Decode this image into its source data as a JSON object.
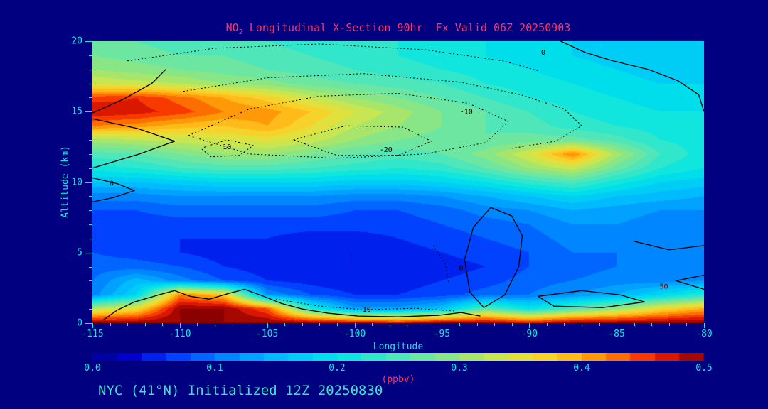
{
  "title": {
    "pre": "NO",
    "sub": "2",
    "post": " Longitudinal X-Section 90hr  Fx Valid 06Z 20250903"
  },
  "subtitle": "NYC (41°N) Initialized 12Z 20250830",
  "colors": {
    "background": "#000080",
    "title_text": "#ff3366",
    "axis_text": "#17e4e4",
    "subtitle_text": "#40e0d0",
    "contour": "#000000",
    "contour_red_label": "#7d0000"
  },
  "axes": {
    "x": {
      "label": "Longitude",
      "min": -115,
      "max": -80,
      "minor_step": 1,
      "major_ticks": [
        -115,
        -110,
        -105,
        -100,
        -95,
        -90,
        -85,
        -80
      ]
    },
    "y": {
      "label": "Altitude (km)",
      "min": 0,
      "max": 20,
      "minor_step": 1,
      "major_ticks": [
        0,
        5,
        10,
        15,
        20
      ]
    }
  },
  "colorbar": {
    "label": "(ppbv)",
    "min": 0.0,
    "max": 0.5,
    "ticks": [
      "0.0",
      "0.1",
      "0.2",
      "0.3",
      "0.4",
      "0.5"
    ]
  },
  "chart_data": {
    "type": "heatmap",
    "title": "NO2 Longitudinal X-Section 90hr  Fx Valid 06Z 20250903",
    "xlabel": "Longitude",
    "ylabel": "Altitude (km)",
    "units": "ppbv",
    "x_range": [
      -115,
      -80
    ],
    "y_range": [
      0,
      20
    ],
    "x_step_deg": 2.5,
    "y_step_km": 1,
    "level_step": 0.02,
    "grid_note": "rows top-to-bottom = altitude 20km down to 0km; cols = longitude -115 to -80 step 2.5",
    "grid": [
      [
        0.27,
        0.26,
        0.25,
        0.25,
        0.24,
        0.23,
        0.23,
        0.22,
        0.21,
        0.2,
        0.19,
        0.18,
        0.17,
        0.16,
        0.16
      ],
      [
        0.28,
        0.27,
        0.26,
        0.26,
        0.25,
        0.24,
        0.23,
        0.22,
        0.21,
        0.2,
        0.19,
        0.18,
        0.17,
        0.17,
        0.16
      ],
      [
        0.3,
        0.29,
        0.28,
        0.27,
        0.26,
        0.25,
        0.24,
        0.23,
        0.22,
        0.21,
        0.2,
        0.19,
        0.18,
        0.17,
        0.17
      ],
      [
        0.34,
        0.33,
        0.32,
        0.3,
        0.29,
        0.27,
        0.26,
        0.25,
        0.24,
        0.22,
        0.21,
        0.2,
        0.19,
        0.18,
        0.18
      ],
      [
        0.45,
        0.46,
        0.43,
        0.4,
        0.37,
        0.33,
        0.3,
        0.28,
        0.26,
        0.24,
        0.22,
        0.21,
        0.2,
        0.19,
        0.19
      ],
      [
        0.48,
        0.47,
        0.45,
        0.42,
        0.41,
        0.38,
        0.34,
        0.31,
        0.28,
        0.26,
        0.24,
        0.22,
        0.21,
        0.2,
        0.2
      ],
      [
        0.42,
        0.41,
        0.39,
        0.38,
        0.4,
        0.36,
        0.32,
        0.3,
        0.28,
        0.26,
        0.25,
        0.23,
        0.22,
        0.21,
        0.2
      ],
      [
        0.31,
        0.32,
        0.33,
        0.34,
        0.35,
        0.33,
        0.3,
        0.28,
        0.27,
        0.26,
        0.27,
        0.27,
        0.25,
        0.22,
        0.21
      ],
      [
        0.25,
        0.26,
        0.28,
        0.3,
        0.3,
        0.28,
        0.26,
        0.25,
        0.26,
        0.29,
        0.34,
        0.42,
        0.31,
        0.24,
        0.21
      ],
      [
        0.21,
        0.22,
        0.24,
        0.25,
        0.25,
        0.24,
        0.23,
        0.22,
        0.23,
        0.26,
        0.3,
        0.33,
        0.27,
        0.22,
        0.2
      ],
      [
        0.16,
        0.16,
        0.17,
        0.18,
        0.18,
        0.18,
        0.17,
        0.17,
        0.18,
        0.2,
        0.23,
        0.25,
        0.21,
        0.18,
        0.17
      ],
      [
        0.11,
        0.11,
        0.12,
        0.12,
        0.12,
        0.12,
        0.11,
        0.11,
        0.12,
        0.14,
        0.16,
        0.18,
        0.16,
        0.15,
        0.14
      ],
      [
        0.08,
        0.08,
        0.09,
        0.09,
        0.09,
        0.09,
        0.08,
        0.08,
        0.09,
        0.11,
        0.12,
        0.14,
        0.13,
        0.12,
        0.12
      ],
      [
        0.07,
        0.07,
        0.07,
        0.07,
        0.07,
        0.07,
        0.07,
        0.07,
        0.08,
        0.09,
        0.1,
        0.12,
        0.12,
        0.11,
        0.11
      ],
      [
        0.07,
        0.06,
        0.06,
        0.06,
        0.06,
        0.05,
        0.05,
        0.06,
        0.07,
        0.08,
        0.09,
        0.11,
        0.11,
        0.1,
        0.1
      ],
      [
        0.08,
        0.07,
        0.06,
        0.05,
        0.05,
        0.04,
        0.04,
        0.05,
        0.06,
        0.07,
        0.08,
        0.1,
        0.1,
        0.1,
        0.1
      ],
      [
        0.09,
        0.09,
        0.08,
        0.06,
        0.05,
        0.04,
        0.04,
        0.04,
        0.05,
        0.06,
        0.08,
        0.09,
        0.1,
        0.1,
        0.1
      ],
      [
        0.1,
        0.15,
        0.11,
        0.08,
        0.06,
        0.05,
        0.04,
        0.05,
        0.06,
        0.07,
        0.09,
        0.1,
        0.11,
        0.11,
        0.12
      ],
      [
        0.11,
        0.18,
        0.42,
        0.38,
        0.12,
        0.08,
        0.06,
        0.06,
        0.07,
        0.09,
        0.1,
        0.12,
        0.14,
        0.18,
        0.22
      ],
      [
        0.32,
        0.36,
        0.5,
        0.5,
        0.44,
        0.22,
        0.13,
        0.13,
        0.16,
        0.26,
        0.2,
        0.25,
        0.3,
        0.36,
        0.4
      ],
      [
        0.5,
        0.5,
        0.5,
        0.5,
        0.5,
        0.5,
        0.49,
        0.47,
        0.5,
        0.5,
        0.47,
        0.5,
        0.5,
        0.5,
        0.5
      ]
    ],
    "colormap_stops": [
      {
        "v": 0.0,
        "c": "#000090"
      },
      {
        "v": 0.03,
        "c": "#0000CC"
      },
      {
        "v": 0.06,
        "c": "#0030FF"
      },
      {
        "v": 0.1,
        "c": "#0078FF"
      },
      {
        "v": 0.15,
        "c": "#00BCFF"
      },
      {
        "v": 0.2,
        "c": "#00E6E6"
      },
      {
        "v": 0.26,
        "c": "#5FE6B0"
      },
      {
        "v": 0.3,
        "c": "#96E678"
      },
      {
        "v": 0.34,
        "c": "#D9E645"
      },
      {
        "v": 0.38,
        "c": "#FFCC22"
      },
      {
        "v": 0.42,
        "c": "#FF8800"
      },
      {
        "v": 0.46,
        "c": "#F52000"
      },
      {
        "v": 0.5,
        "c": "#8B0000"
      }
    ],
    "overlay_contours": [
      {
        "style": "solid",
        "points": [
          [
            -88.2,
            20
          ],
          [
            -86.8,
            19.2
          ],
          [
            -85.2,
            18.6
          ],
          [
            -83.2,
            18.0
          ],
          [
            -81.5,
            17.2
          ],
          [
            -80.3,
            16.2
          ],
          [
            -80,
            15.0
          ]
        ]
      },
      {
        "style": "solid",
        "points": [
          [
            -115,
            14.5
          ],
          [
            -112.4,
            13.8
          ],
          [
            -110.3,
            12.9
          ],
          [
            -112.3,
            12.0
          ],
          [
            -115,
            11.0
          ]
        ]
      },
      {
        "style": "solid",
        "points": [
          [
            -115,
            10.3
          ],
          [
            -113.6,
            9.9
          ],
          [
            -112.6,
            9.4
          ],
          [
            -113.8,
            8.9
          ],
          [
            -115,
            8.6
          ]
        ]
      },
      {
        "style": "solid",
        "points": [
          [
            -92.2,
            8.2
          ],
          [
            -91.0,
            7.6
          ],
          [
            -90.4,
            6.2
          ],
          [
            -90.6,
            4.0
          ],
          [
            -91.4,
            2.0
          ],
          [
            -92.6,
            1.1
          ],
          [
            -93.4,
            2.2
          ],
          [
            -93.7,
            4.5
          ],
          [
            -93.2,
            6.8
          ],
          [
            -92.2,
            8.2
          ]
        ]
      },
      {
        "style": "solid",
        "points": [
          [
            -89.5,
            1.9
          ],
          [
            -87.0,
            2.3
          ],
          [
            -84.8,
            2.0
          ],
          [
            -83.4,
            1.5
          ],
          [
            -85.8,
            1.1
          ],
          [
            -88.6,
            1.2
          ],
          [
            -89.5,
            1.9
          ]
        ]
      },
      {
        "style": "solid",
        "points": [
          [
            -84.0,
            5.8
          ],
          [
            -82.0,
            5.2
          ],
          [
            -80,
            5.5
          ]
        ]
      },
      {
        "style": "solid",
        "points": [
          [
            -80,
            3.4
          ],
          [
            -81.6,
            3.0
          ],
          [
            -80,
            2.4
          ]
        ]
      },
      {
        "style": "solid",
        "points": [
          [
            -115,
            14.9
          ],
          [
            -113.2,
            15.9
          ],
          [
            -111.6,
            17.0
          ],
          [
            -110.8,
            18.0
          ]
        ]
      },
      {
        "style": "solid",
        "points": [
          [
            -114.4,
            0.2
          ],
          [
            -113.6,
            0.9
          ],
          [
            -112.6,
            1.5
          ],
          [
            -111.2,
            2.0
          ],
          [
            -110.3,
            2.3
          ],
          [
            -109.4,
            1.9
          ],
          [
            -108.3,
            1.7
          ],
          [
            -107.2,
            2.1
          ],
          [
            -106.3,
            2.4
          ],
          [
            -105.2,
            1.9
          ],
          [
            -104.2,
            1.4
          ],
          [
            -103.0,
            1.0
          ],
          [
            -101.5,
            0.7
          ],
          [
            -99.8,
            0.5
          ],
          [
            -97.5,
            0.45
          ],
          [
            -95.2,
            0.55
          ],
          [
            -93.9,
            0.75
          ],
          [
            -92.8,
            0.5
          ]
        ]
      },
      {
        "style": "dotted",
        "points": [
          [
            -109.5,
            13.3
          ],
          [
            -106,
            15.2
          ],
          [
            -102,
            16.1
          ],
          [
            -97.5,
            16.3
          ],
          [
            -93.5,
            15.6
          ],
          [
            -91.2,
            14.3
          ],
          [
            -92.5,
            12.8
          ],
          [
            -96,
            12.0
          ],
          [
            -101,
            11.7
          ],
          [
            -106,
            12.0
          ],
          [
            -109.5,
            13.3
          ]
        ]
      },
      {
        "style": "dotted",
        "points": [
          [
            -103.5,
            13.0
          ],
          [
            -100.5,
            14.0
          ],
          [
            -97.2,
            13.9
          ],
          [
            -95.6,
            12.9
          ],
          [
            -97.5,
            11.9
          ],
          [
            -101,
            11.9
          ],
          [
            -103.5,
            13.0
          ]
        ]
      },
      {
        "style": "dotted",
        "points": [
          [
            -108.8,
            12.4
          ],
          [
            -107.3,
            13.0
          ],
          [
            -105.8,
            12.6
          ],
          [
            -106.6,
            11.9
          ],
          [
            -108.2,
            11.8
          ],
          [
            -108.8,
            12.4
          ]
        ]
      },
      {
        "style": "dotted",
        "points": [
          [
            -113,
            18.6
          ],
          [
            -108,
            19.5
          ],
          [
            -102,
            19.8
          ],
          [
            -96,
            19.4
          ],
          [
            -91.5,
            18.6
          ],
          [
            -89.5,
            17.9
          ]
        ]
      },
      {
        "style": "dotted",
        "points": [
          [
            -110,
            16.4
          ],
          [
            -105,
            17.4
          ],
          [
            -99.5,
            17.7
          ],
          [
            -94,
            17.1
          ],
          [
            -90.5,
            16.2
          ],
          [
            -88,
            15.2
          ],
          [
            -87,
            14.0
          ],
          [
            -88.5,
            12.9
          ],
          [
            -91,
            12.4
          ]
        ]
      },
      {
        "style": "dotted",
        "points": [
          [
            -104.5,
            1.7
          ],
          [
            -102,
            1.2
          ],
          [
            -99.5,
            0.95
          ],
          [
            -96.5,
            1.05
          ],
          [
            -94.2,
            0.85
          ]
        ]
      },
      {
        "style": "dotted",
        "points": [
          [
            -95.5,
            5.5
          ],
          [
            -94.8,
            4.2
          ],
          [
            -94.6,
            2.8
          ]
        ]
      }
    ],
    "contour_labels": [
      {
        "text": "0",
        "lon": -89.2,
        "alt": 19.2
      },
      {
        "text": "-10",
        "lon": -93.6,
        "alt": 15.0
      },
      {
        "text": "-20",
        "lon": -98.2,
        "alt": 12.3
      },
      {
        "text": "10",
        "lon": -107.3,
        "alt": 12.5
      },
      {
        "text": "10",
        "lon": -99.3,
        "alt": 0.95
      },
      {
        "text": "0",
        "lon": -93.9,
        "alt": 3.9
      },
      {
        "text": "0",
        "lon": -113.9,
        "alt": 9.9
      },
      {
        "text": "50",
        "lon": -82.3,
        "alt": 2.6,
        "color": "#7d0000"
      }
    ]
  }
}
